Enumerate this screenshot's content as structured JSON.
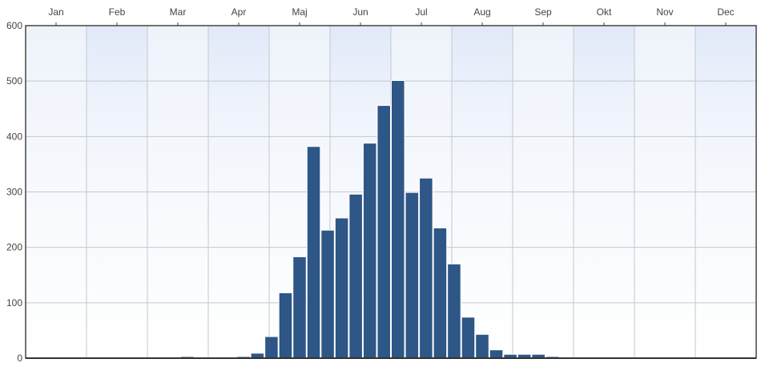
{
  "chart_data": {
    "type": "bar",
    "title": "",
    "xlabel": "",
    "ylabel": "",
    "x_tick_labels": [
      "Jan",
      "Feb",
      "Mar",
      "Apr",
      "Maj",
      "Jun",
      "Jul",
      "Aug",
      "Sep",
      "Okt",
      "Nov",
      "Dec"
    ],
    "y_ticks": [
      0,
      100,
      200,
      300,
      400,
      500,
      600
    ],
    "ylim": [
      0,
      600
    ],
    "bin_width_weeks": 1,
    "grid": true,
    "legend": "none",
    "colors": {
      "bar_fill": "#2e5686",
      "bar_stroke": "#ffffff",
      "plot_bg_top": "#eef3fb",
      "plot_bg_bottom": "#ffffff",
      "grid": "#c4c8cc",
      "axis": "#444444"
    },
    "x": [
      1,
      2,
      3,
      4,
      5,
      6,
      7,
      8,
      9,
      10,
      11,
      12,
      13,
      14,
      15,
      16,
      17,
      18,
      19,
      20,
      21,
      22,
      23,
      24,
      25,
      26,
      27,
      28,
      29,
      30,
      31,
      32,
      33,
      34,
      35,
      36,
      37,
      38,
      39,
      40,
      41,
      42,
      43,
      44,
      45,
      46,
      47,
      48,
      49,
      50,
      51,
      52
    ],
    "values": [
      0,
      0,
      0,
      0,
      0,
      0,
      0,
      0,
      0,
      0,
      0,
      3,
      0,
      0,
      0,
      3,
      9,
      39,
      118,
      183,
      382,
      231,
      253,
      296,
      388,
      456,
      501,
      299,
      325,
      235,
      170,
      74,
      43,
      15,
      7,
      7,
      7,
      3,
      0,
      0,
      0,
      0,
      0,
      0,
      0,
      0,
      0,
      0,
      0,
      0,
      0,
      0
    ]
  }
}
